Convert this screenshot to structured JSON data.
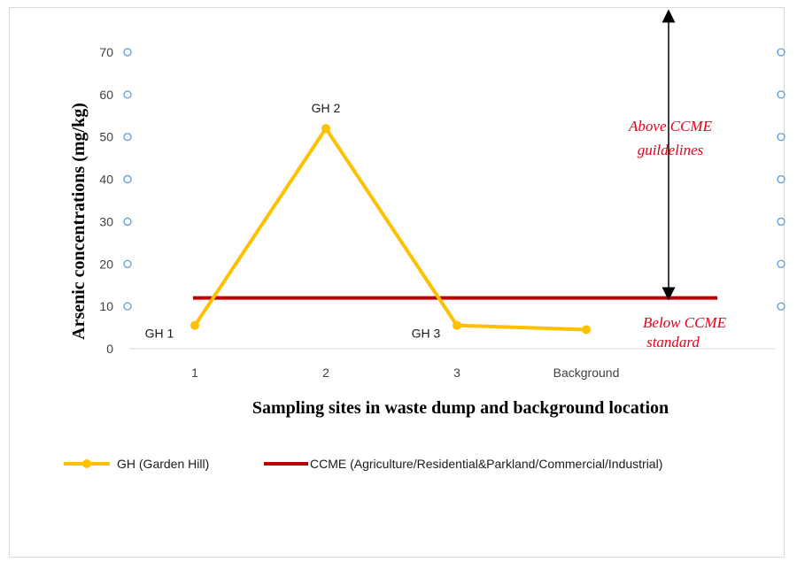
{
  "chart_data": {
    "type": "line",
    "categories": [
      "1",
      "2",
      "3",
      "Background"
    ],
    "ylabel": "Arsenic concentrations (mg/kg)",
    "xlabel": "Sampling sites in waste dump and background location",
    "ylim": [
      0,
      70
    ],
    "yticks": [
      0,
      10,
      20,
      30,
      40,
      50,
      60,
      70
    ],
    "grid": false,
    "legend_position": "bottom",
    "series": [
      {
        "name": "GH (Garden Hill)",
        "color": "#ffc000",
        "values": [
          5.5,
          52,
          5.5,
          4.5
        ],
        "point_labels": [
          "GH 1",
          "GH 2",
          "GH 3",
          ""
        ]
      },
      {
        "name": "CCME (Agriculture/Residential&Parkland/Commercial/Industrial)",
        "color": "#c00000",
        "constant": 12
      }
    ],
    "annotations": {
      "above_line1": "Above CCME",
      "above_line2": "guildelines",
      "below_line1": "Below CCME",
      "below_line2": "standard"
    }
  }
}
